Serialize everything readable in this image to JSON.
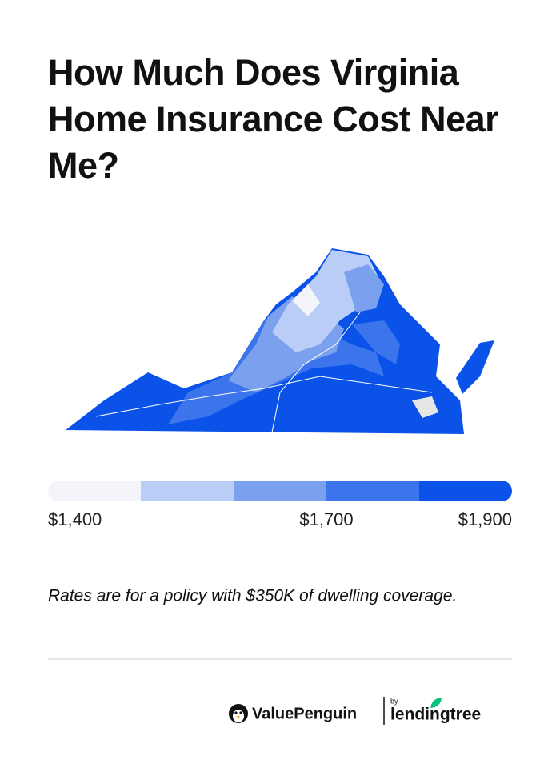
{
  "header": {
    "title": "How Much Does Virginia Home Insurance Cost Near Me?"
  },
  "legend": {
    "lim": [
      1400,
      1900
    ],
    "colors": [
      "#f3f5fb",
      "#b9cdf6",
      "#7ba0ee",
      "#3c74ec",
      "#0a52e8"
    ],
    "ticks": [
      {
        "value": 1400,
        "label": "$1,400"
      },
      {
        "value": 1700,
        "label": "$1,700"
      },
      {
        "value": 1900,
        "label": "$1,900"
      }
    ]
  },
  "note": "Rates are for a policy with $350K of dwelling coverage.",
  "footer": {
    "brand": "ValuePenguin",
    "by": "by",
    "partner": "lendingtree"
  }
}
